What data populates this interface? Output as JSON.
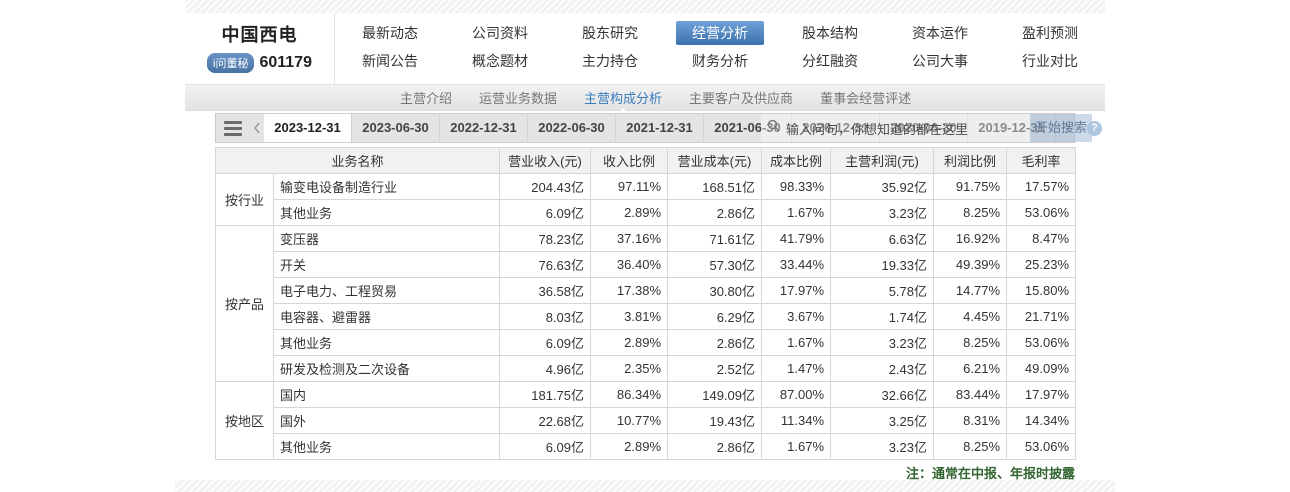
{
  "header": {
    "company_name": "中国西电",
    "stock_code": "601179",
    "ask_secretary_badge": "i问董秘",
    "nav": {
      "row1": [
        "最新动态",
        "公司资料",
        "股东研究",
        "经营分析",
        "股本结构",
        "资本运作",
        "盈利预测"
      ],
      "row2": [
        "新闻公告",
        "概念题材",
        "主力持仓",
        "财务分析",
        "分红融资",
        "公司大事",
        "行业对比"
      ],
      "active": "经营分析"
    },
    "subnav": {
      "items": [
        "主营介绍",
        "运营业务数据",
        "主营构成分析",
        "主要客户及供应商",
        "董事会经营评述"
      ],
      "active": "主营构成分析"
    }
  },
  "date_tabs": {
    "tabs": [
      "2023-12-31",
      "2023-06-30",
      "2022-12-31",
      "2022-06-30",
      "2021-12-31",
      "2021-06-30",
      "2020-12-31",
      "2020-06-30",
      "2019-12-31"
    ],
    "active": "2023-12-31"
  },
  "search_overlay": {
    "placeholder": "输入问句，你想知道的都在这里",
    "button_label": "开始搜索",
    "help_glyph": "?"
  },
  "table": {
    "columns": [
      "业务名称",
      "营业收入(元)",
      "收入比例",
      "营业成本(元)",
      "成本比例",
      "主营利润(元)",
      "利润比例",
      "毛利率"
    ],
    "groups": [
      {
        "label": "按行业",
        "rows": [
          [
            "输变电设备制造行业",
            "204.43亿",
            "97.11%",
            "168.51亿",
            "98.33%",
            "35.92亿",
            "91.75%",
            "17.57%"
          ],
          [
            "其他业务",
            "6.09亿",
            "2.89%",
            "2.86亿",
            "1.67%",
            "3.23亿",
            "8.25%",
            "53.06%"
          ]
        ]
      },
      {
        "label": "按产品",
        "rows": [
          [
            "变压器",
            "78.23亿",
            "37.16%",
            "71.61亿",
            "41.79%",
            "6.63亿",
            "16.92%",
            "8.47%"
          ],
          [
            "开关",
            "76.63亿",
            "36.40%",
            "57.30亿",
            "33.44%",
            "19.33亿",
            "49.39%",
            "25.23%"
          ],
          [
            "电子电力、工程贸易",
            "36.58亿",
            "17.38%",
            "30.80亿",
            "17.97%",
            "5.78亿",
            "14.77%",
            "15.80%"
          ],
          [
            "电容器、避雷器",
            "8.03亿",
            "3.81%",
            "6.29亿",
            "3.67%",
            "1.74亿",
            "4.45%",
            "21.71%"
          ],
          [
            "其他业务",
            "6.09亿",
            "2.89%",
            "2.86亿",
            "1.67%",
            "3.23亿",
            "8.25%",
            "53.06%"
          ],
          [
            "研发及检测及二次设备",
            "4.96亿",
            "2.35%",
            "2.52亿",
            "1.47%",
            "2.43亿",
            "6.21%",
            "49.09%"
          ]
        ]
      },
      {
        "label": "按地区",
        "rows": [
          [
            "国内",
            "181.75亿",
            "86.34%",
            "149.09亿",
            "87.00%",
            "32.66亿",
            "83.44%",
            "17.97%"
          ],
          [
            "国外",
            "22.68亿",
            "10.77%",
            "19.43亿",
            "11.34%",
            "3.25亿",
            "8.31%",
            "14.34%"
          ],
          [
            "其他业务",
            "6.09亿",
            "2.89%",
            "2.86亿",
            "1.67%",
            "3.23亿",
            "8.25%",
            "53.06%"
          ]
        ]
      }
    ],
    "note": "注：通常在中报、年报时披露"
  },
  "colors": {
    "nav_active_top": "#6fa0d8",
    "nav_active_bottom": "#3d71ac",
    "subnav_active_text": "#3a7ebf",
    "badge_blue": "#46719f",
    "strip_bg": "#e4e4e4",
    "table_header_bg": "#f1f1f1",
    "note_green": "#336633",
    "help_bubble_blue": "#abc6de"
  }
}
